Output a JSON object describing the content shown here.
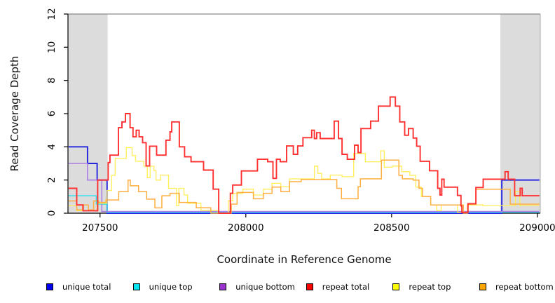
{
  "chart_data": {
    "type": "line",
    "subtype": "step",
    "title": "",
    "xlabel": "Coordinate in Reference Genome",
    "ylabel": "Read Coverage Depth",
    "xlim": [
      207390,
      209010
    ],
    "ylim": [
      0,
      12
    ],
    "x_ticks": [
      207500,
      208000,
      208500,
      209000
    ],
    "y_ticks": [
      0,
      2,
      4,
      6,
      8,
      10,
      12
    ],
    "grid": false,
    "legend_position": "bottom-horizontal",
    "frame": {
      "axis_color": "#000000",
      "top_border_color": "#8a8a8a",
      "right_border_color": "#aaaaaa"
    },
    "shaded_regions": [
      {
        "x0": 207390,
        "x1": 207526,
        "color": "#dcdcdc"
      },
      {
        "x0": 208873,
        "x1": 209010,
        "color": "#dcdcdc"
      }
    ],
    "legend": {
      "items": [
        {
          "label": "unique total",
          "color": "#0000ee"
        },
        {
          "label": "unique top",
          "color": "#00e5ee"
        },
        {
          "label": "unique bottom",
          "color": "#9932cc"
        },
        {
          "label": "repeat total",
          "color": "#ff0000"
        },
        {
          "label": "repeat top",
          "color": "#ffff00"
        },
        {
          "label": "repeat bottom",
          "color": "#ffa500"
        }
      ]
    },
    "series": [
      {
        "name": "unique total",
        "color": "#2525e0",
        "width": 1.9,
        "points": [
          [
            207392,
            4
          ],
          [
            207457,
            3
          ],
          [
            207490,
            2
          ],
          [
            207524,
            0
          ],
          [
            208878,
            2
          ],
          [
            209007,
            2
          ]
        ]
      },
      {
        "name": "unique top",
        "color": "#2ae0ee",
        "width": 1.4,
        "points": [
          [
            207392,
            1.05
          ],
          [
            207487,
            0.55
          ],
          [
            207524,
            0.05
          ],
          [
            209007,
            0.05
          ]
        ]
      },
      {
        "name": "unique bottom",
        "color": "#a97fe3",
        "width": 1.6,
        "points": [
          [
            207392,
            3
          ],
          [
            207457,
            2
          ],
          [
            207506,
            0.1
          ],
          [
            209007,
            0.1
          ]
        ]
      },
      {
        "name": "repeat top",
        "color": "#ffee55",
        "width": 1.3,
        "points": [
          [
            207392,
            0.45
          ],
          [
            207420,
            0.15
          ],
          [
            207490,
            0.6
          ],
          [
            207524,
            1.37
          ],
          [
            207540,
            2.28
          ],
          [
            207552,
            3.3
          ],
          [
            207590,
            3.95
          ],
          [
            207610,
            3.47
          ],
          [
            207622,
            3.13
          ],
          [
            207650,
            2.83
          ],
          [
            207662,
            2.14
          ],
          [
            207672,
            2.83
          ],
          [
            207685,
            2.57
          ],
          [
            207692,
            2.0
          ],
          [
            207708,
            2.3
          ],
          [
            207735,
            1.5
          ],
          [
            207762,
            0.45
          ],
          [
            207770,
            1.5
          ],
          [
            207788,
            1.1
          ],
          [
            207800,
            0.6
          ],
          [
            207846,
            0.17
          ],
          [
            207905,
            0.0
          ],
          [
            207940,
            0.75
          ],
          [
            207955,
            1.2
          ],
          [
            207990,
            1.45
          ],
          [
            208026,
            1.1
          ],
          [
            208060,
            1.45
          ],
          [
            208090,
            1.8
          ],
          [
            208120,
            1.6
          ],
          [
            208150,
            2.07
          ],
          [
            208235,
            2.84
          ],
          [
            208247,
            2.4
          ],
          [
            208260,
            2.07
          ],
          [
            208290,
            2.3
          ],
          [
            208330,
            2.2
          ],
          [
            208370,
            3.6
          ],
          [
            208410,
            3.1
          ],
          [
            208463,
            3.76
          ],
          [
            208475,
            2.77
          ],
          [
            208503,
            2.84
          ],
          [
            208535,
            2.5
          ],
          [
            208563,
            2.28
          ],
          [
            208583,
            1.57
          ],
          [
            208602,
            1.0
          ],
          [
            208634,
            0.5
          ],
          [
            208655,
            0.15
          ],
          [
            208670,
            0.5
          ],
          [
            208726,
            0.05
          ],
          [
            208760,
            0.5
          ],
          [
            208814,
            0.45
          ],
          [
            208925,
            1.3
          ],
          [
            208940,
            0.45
          ],
          [
            209007,
            0.45
          ]
        ]
      },
      {
        "name": "repeat bottom",
        "color": "#ffae42",
        "width": 1.5,
        "points": [
          [
            207392,
            0.74
          ],
          [
            207420,
            0.2
          ],
          [
            207440,
            0.5
          ],
          [
            207460,
            0.2
          ],
          [
            207478,
            0.74
          ],
          [
            207495,
            0.65
          ],
          [
            207520,
            0.8
          ],
          [
            207564,
            1.3
          ],
          [
            207596,
            2.0
          ],
          [
            207604,
            1.65
          ],
          [
            207632,
            1.3
          ],
          [
            207660,
            0.85
          ],
          [
            207688,
            0.32
          ],
          [
            207712,
            1.05
          ],
          [
            207740,
            1.2
          ],
          [
            207772,
            0.65
          ],
          [
            207830,
            0.33
          ],
          [
            207880,
            0.0
          ],
          [
            207950,
            0.55
          ],
          [
            207970,
            1.25
          ],
          [
            208026,
            0.87
          ],
          [
            208060,
            1.2
          ],
          [
            208090,
            1.57
          ],
          [
            208120,
            1.3
          ],
          [
            208150,
            1.9
          ],
          [
            208190,
            2.03
          ],
          [
            208312,
            1.5
          ],
          [
            208328,
            0.87
          ],
          [
            208385,
            1.6
          ],
          [
            208393,
            2.07
          ],
          [
            208465,
            3.2
          ],
          [
            208525,
            2.28
          ],
          [
            208537,
            2.07
          ],
          [
            208574,
            2.0
          ],
          [
            208594,
            1.5
          ],
          [
            208606,
            1.0
          ],
          [
            208634,
            0.5
          ],
          [
            208746,
            0.0
          ],
          [
            208761,
            0.55
          ],
          [
            208789,
            1.45
          ],
          [
            208907,
            0.55
          ],
          [
            209007,
            0.55
          ]
        ]
      },
      {
        "name": "repeat total",
        "color": "#ff3030",
        "width": 1.9,
        "points": [
          [
            207392,
            1.5
          ],
          [
            207420,
            0.5
          ],
          [
            207442,
            0.15
          ],
          [
            207492,
            2.0
          ],
          [
            207528,
            3.05
          ],
          [
            207534,
            3.5
          ],
          [
            207563,
            5.15
          ],
          [
            207575,
            5.5
          ],
          [
            207587,
            6.0
          ],
          [
            207603,
            5.15
          ],
          [
            207613,
            4.6
          ],
          [
            207624,
            5.0
          ],
          [
            207634,
            4.6
          ],
          [
            207646,
            4.25
          ],
          [
            207658,
            2.85
          ],
          [
            207670,
            4.04
          ],
          [
            207694,
            3.5
          ],
          [
            207726,
            4.4
          ],
          [
            207740,
            4.9
          ],
          [
            207746,
            5.5
          ],
          [
            207772,
            4.0
          ],
          [
            207790,
            3.4
          ],
          [
            207812,
            3.1
          ],
          [
            207855,
            2.6
          ],
          [
            207888,
            1.45
          ],
          [
            207907,
            0.0
          ],
          [
            207947,
            1.2
          ],
          [
            207955,
            1.7
          ],
          [
            207985,
            2.55
          ],
          [
            208040,
            3.25
          ],
          [
            208075,
            3.1
          ],
          [
            208093,
            2.1
          ],
          [
            208105,
            3.25
          ],
          [
            208118,
            3.1
          ],
          [
            208140,
            4.05
          ],
          [
            208163,
            3.55
          ],
          [
            208178,
            4.05
          ],
          [
            208196,
            4.55
          ],
          [
            208226,
            5.0
          ],
          [
            208235,
            4.5
          ],
          [
            208243,
            4.85
          ],
          [
            208255,
            4.5
          ],
          [
            208303,
            5.55
          ],
          [
            208318,
            4.5
          ],
          [
            208330,
            3.55
          ],
          [
            208348,
            3.25
          ],
          [
            208373,
            4.1
          ],
          [
            208385,
            3.65
          ],
          [
            208395,
            5.1
          ],
          [
            208428,
            5.55
          ],
          [
            208455,
            6.45
          ],
          [
            208495,
            7.0
          ],
          [
            208513,
            6.45
          ],
          [
            208528,
            5.5
          ],
          [
            208545,
            4.7
          ],
          [
            208558,
            5.1
          ],
          [
            208574,
            4.53
          ],
          [
            208586,
            4.04
          ],
          [
            208598,
            3.13
          ],
          [
            208630,
            2.56
          ],
          [
            208658,
            1.5
          ],
          [
            208666,
            1.1
          ],
          [
            208672,
            2.05
          ],
          [
            208680,
            1.57
          ],
          [
            208726,
            1.07
          ],
          [
            208738,
            0.44
          ],
          [
            208741,
            0.05
          ],
          [
            208762,
            0.57
          ],
          [
            208789,
            1.55
          ],
          [
            208814,
            2.05
          ],
          [
            208889,
            2.5
          ],
          [
            208900,
            2.05
          ],
          [
            208922,
            1.05
          ],
          [
            208941,
            1.5
          ],
          [
            208948,
            1.05
          ],
          [
            209007,
            1.05
          ]
        ]
      }
    ]
  }
}
